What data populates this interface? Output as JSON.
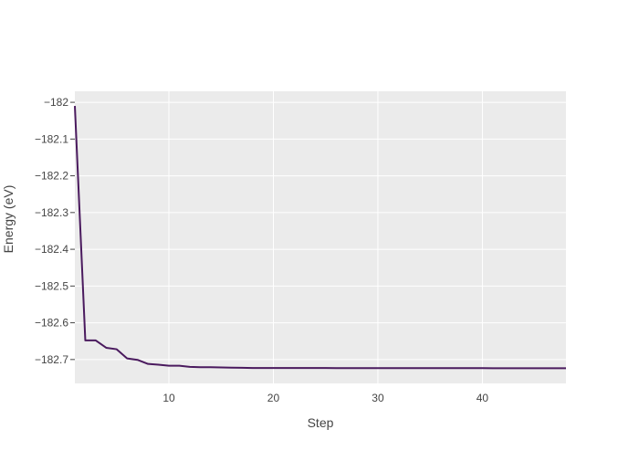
{
  "chart_data": {
    "type": "line",
    "xlabel": "Step",
    "ylabel": "Energy (eV)",
    "xlim": [
      1,
      48
    ],
    "ylim": [
      -182.765,
      -181.97
    ],
    "x_ticks": [
      10,
      20,
      30,
      40
    ],
    "y_ticks": [
      -182,
      -182.1,
      -182.2,
      -182.3,
      -182.4,
      -182.5,
      -182.6,
      -182.7
    ],
    "y_tick_labels": [
      "−182",
      "−182.1",
      "−182.2",
      "−182.3",
      "−182.4",
      "−182.5",
      "−182.6",
      "−182.7"
    ],
    "grid": true,
    "series": [
      {
        "color": "#4a1a5e",
        "x": [
          1,
          2,
          3,
          4,
          5,
          6,
          7,
          8,
          9,
          10,
          11,
          12,
          13,
          14,
          15,
          16,
          17,
          18,
          19,
          20,
          21,
          22,
          23,
          24,
          25,
          26,
          27,
          28,
          29,
          30,
          31,
          32,
          33,
          34,
          35,
          36,
          37,
          38,
          39,
          40,
          41,
          42,
          43,
          44,
          45,
          46,
          47,
          48
        ],
        "y": [
          -182.01,
          -182.648,
          -182.648,
          -182.668,
          -182.672,
          -182.697,
          -182.701,
          -182.712,
          -182.714,
          -182.717,
          -182.717,
          -182.72,
          -182.721,
          -182.721,
          -182.7215,
          -182.722,
          -182.7225,
          -182.723,
          -182.723,
          -182.723,
          -182.723,
          -182.723,
          -182.7232,
          -182.7232,
          -182.7232,
          -182.7233,
          -182.7233,
          -182.7233,
          -182.7233,
          -182.7234,
          -182.7234,
          -182.7234,
          -182.7234,
          -182.7234,
          -182.7235,
          -182.7235,
          -182.7235,
          -182.7235,
          -182.7235,
          -182.7235,
          -182.7236,
          -182.7236,
          -182.7236,
          -182.7236,
          -182.7236,
          -182.7236,
          -182.7236,
          -182.7236
        ]
      }
    ]
  },
  "colors": {
    "plot_background": "#ebebeb",
    "gridline": "#ffffff",
    "line": "#4a1a5e"
  }
}
